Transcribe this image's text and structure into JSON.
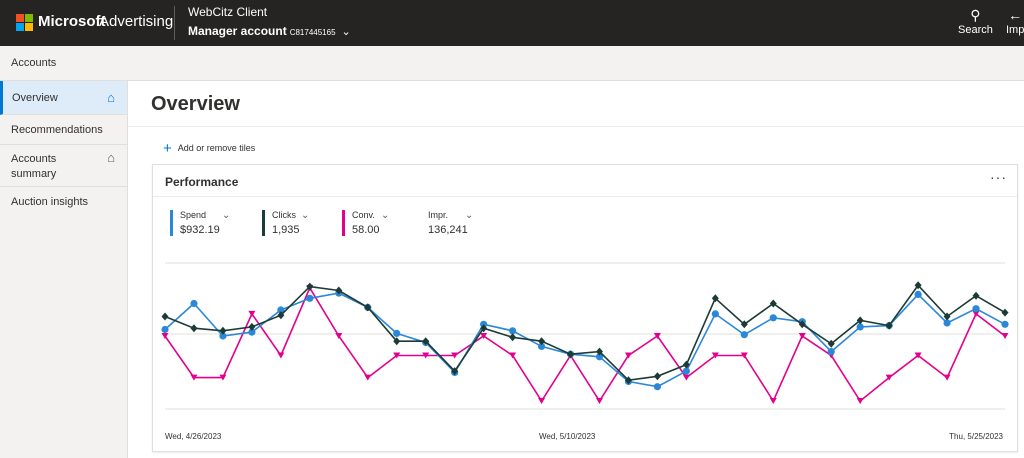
{
  "brand": "Microsoft",
  "product": "Advertising",
  "client_name": "WebCitz Client",
  "account": {
    "label": "Manager account",
    "id": "C817445165"
  },
  "top_actions": [
    {
      "icon": "search-icon",
      "label": "Search"
    },
    {
      "icon": "import-icon",
      "label": "Imp"
    }
  ],
  "accounts_bar": "Accounts",
  "sidebar": {
    "items": [
      {
        "label": "Overview",
        "icon": "home-filled-icon"
      },
      {
        "label": "Recommendations"
      },
      {
        "label": "Accounts summary",
        "icon": "home-outline-icon"
      },
      {
        "label": "Auction insights"
      }
    ]
  },
  "page_title": "Overview",
  "add_tiles": "Add or remove tiles",
  "card": {
    "title": "Performance",
    "more": "···",
    "metrics": [
      {
        "label": "Spend",
        "value": "$932.19",
        "color": "#2b88d8"
      },
      {
        "label": "Clicks",
        "value": "1,935",
        "color": "#1d3b36"
      },
      {
        "label": "Conv.",
        "value": "58.00",
        "color": "#e3008c"
      },
      {
        "label": "Impr.",
        "value": "136,241",
        "color": ""
      }
    ]
  },
  "chart_data": {
    "type": "line",
    "x_labels": [
      "Wed, 4/26/2023",
      "Wed, 5/10/2023",
      "Thu, 5/25/2023"
    ],
    "series": [
      {
        "name": "Spend",
        "color": "#2b88d8",
        "marker": "circle",
        "values": [
          0.55,
          0.75,
          0.5,
          0.53,
          0.7,
          0.79,
          0.83,
          0.72,
          0.52,
          0.45,
          0.22,
          0.59,
          0.54,
          0.42,
          0.36,
          0.34,
          0.15,
          0.11,
          0.23,
          0.67,
          0.51,
          0.64,
          0.61,
          0.38,
          0.57,
          0.58,
          0.82,
          0.6,
          0.71,
          0.59
        ]
      },
      {
        "name": "Clicks",
        "color": "#1d3b36",
        "marker": "diamond",
        "values": [
          0.65,
          0.56,
          0.54,
          0.57,
          0.66,
          0.88,
          0.85,
          0.72,
          0.46,
          0.46,
          0.23,
          0.56,
          0.49,
          0.46,
          0.36,
          0.38,
          0.16,
          0.19,
          0.28,
          0.79,
          0.59,
          0.75,
          0.59,
          0.44,
          0.62,
          0.58,
          0.89,
          0.65,
          0.81,
          0.68
        ]
      },
      {
        "name": "Conv.",
        "color": "#e3008c",
        "marker": "triangle",
        "values": [
          0.5,
          0.18,
          0.18,
          0.67,
          0.35,
          0.87,
          0.5,
          0.18,
          0.35,
          0.35,
          0.35,
          0.5,
          0.35,
          0.0,
          0.35,
          0.0,
          0.35,
          0.5,
          0.18,
          0.35,
          0.35,
          0.0,
          0.5,
          0.35,
          0.0,
          0.18,
          0.35,
          0.18,
          0.67,
          0.5
        ]
      }
    ]
  }
}
